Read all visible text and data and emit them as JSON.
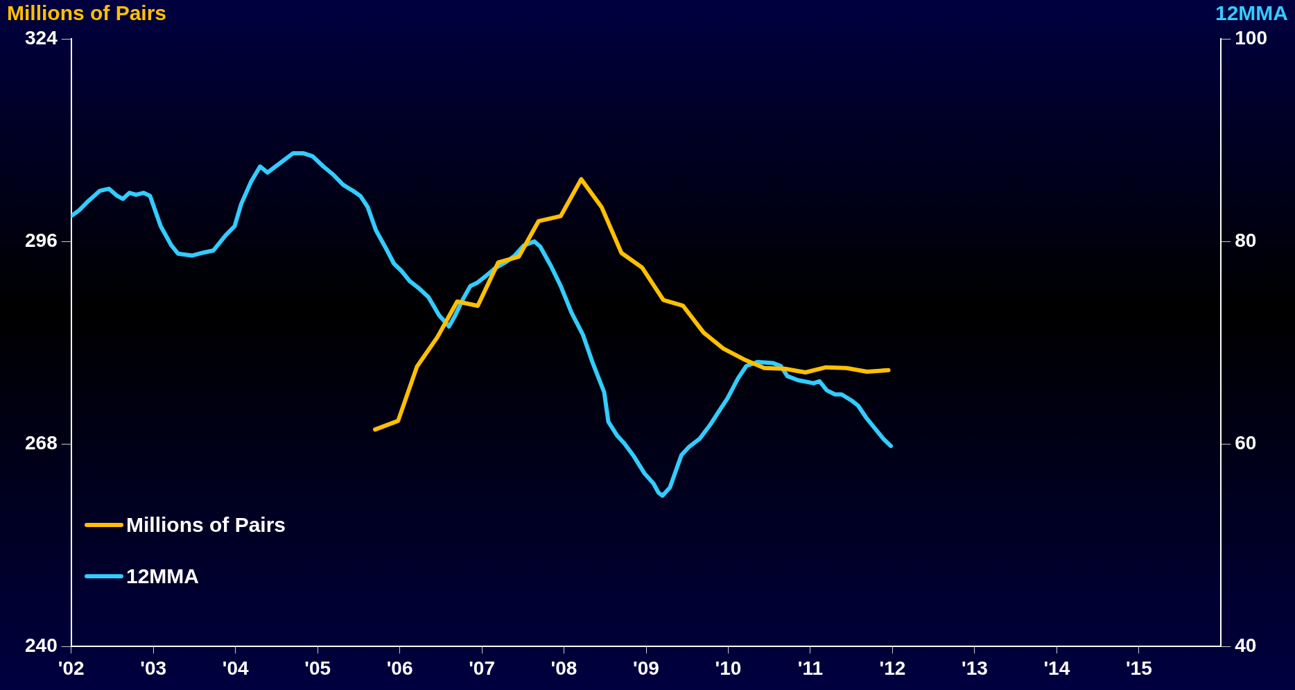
{
  "chart_data": {
    "type": "line",
    "ylabel": "Millions of Pairs",
    "y2label": "12MMA",
    "xlim": [
      2002,
      2016
    ],
    "xticks": [
      {
        "value": 2002,
        "label": "'02"
      },
      {
        "value": 2003,
        "label": "'03"
      },
      {
        "value": 2004,
        "label": "'04"
      },
      {
        "value": 2005,
        "label": "'05"
      },
      {
        "value": 2006,
        "label": "'06"
      },
      {
        "value": 2007,
        "label": "'07"
      },
      {
        "value": 2008,
        "label": "'08"
      },
      {
        "value": 2009,
        "label": "'09"
      },
      {
        "value": 2010,
        "label": "'10"
      },
      {
        "value": 2011,
        "label": "'11"
      },
      {
        "value": 2012,
        "label": "'12"
      },
      {
        "value": 2013,
        "label": "'13"
      },
      {
        "value": 2014,
        "label": "'14"
      },
      {
        "value": 2015,
        "label": "'15"
      }
    ],
    "ylim": [
      240,
      324
    ],
    "yticks": [
      240,
      268,
      296,
      324
    ],
    "y2lim": [
      40,
      100
    ],
    "y2ticks": [
      40,
      60,
      80,
      100
    ],
    "grid": false,
    "legend": "bottom left",
    "marker": "none",
    "line_style": "solid",
    "series": [
      {
        "name": "Millions of Pairs",
        "color": "#ffc000",
        "x": [
          2005.7,
          2005.98,
          2006.21,
          2006.46,
          2006.7,
          2006.95,
          2007.2,
          2007.45,
          2007.69,
          2007.96,
          2008.21,
          2008.46,
          2008.7,
          2008.95,
          2009.21,
          2009.45,
          2009.7,
          2009.94,
          2010.19,
          2010.44,
          2010.69,
          2010.94,
          2011.19,
          2011.44,
          2011.69,
          2011.95
        ],
        "values": [
          270.0,
          271.2,
          278.7,
          282.8,
          287.7,
          287.1,
          293.1,
          293.9,
          298.8,
          299.5,
          304.6,
          300.7,
          294.4,
          292.4,
          287.9,
          287.1,
          283.4,
          281.2,
          279.7,
          278.5,
          278.4,
          277.9,
          278.6,
          278.5,
          278.0,
          278.2
        ]
      },
      {
        "name": "12MMA",
        "color": "#33ccff",
        "axis": "y2",
        "x": [
          2002.0,
          2002.1,
          2002.21,
          2002.35,
          2002.46,
          2002.56,
          2002.63,
          2002.71,
          2002.79,
          2002.88,
          2002.96,
          2003.09,
          2003.22,
          2003.3,
          2003.47,
          2003.61,
          2003.73,
          2003.88,
          2003.99,
          2004.07,
          2004.19,
          2004.3,
          2004.39,
          2004.57,
          2004.7,
          2004.83,
          2004.94,
          2005.07,
          2005.19,
          2005.31,
          2005.43,
          2005.52,
          2005.61,
          2005.71,
          2005.82,
          2005.93,
          2006.02,
          2006.12,
          2006.23,
          2006.35,
          2006.48,
          2006.6,
          2006.67,
          2006.77,
          2006.86,
          2006.94,
          2007.05,
          2007.17,
          2007.3,
          2007.4,
          2007.51,
          2007.64,
          2007.71,
          2007.84,
          2007.96,
          2008.09,
          2008.23,
          2008.35,
          2008.49,
          2008.54,
          2008.65,
          2008.73,
          2008.85,
          2008.98,
          2009.09,
          2009.15,
          2009.2,
          2009.29,
          2009.43,
          2009.52,
          2009.65,
          2009.78,
          2009.9,
          2009.99,
          2010.12,
          2010.22,
          2010.36,
          2010.54,
          2010.64,
          2010.72,
          2010.85,
          2011.04,
          2011.11,
          2011.2,
          2011.3,
          2011.38,
          2011.5,
          2011.58,
          2011.68,
          2011.79,
          2011.89,
          2011.98
        ],
        "values": [
          82.5,
          83.1,
          84.0,
          85.0,
          85.2,
          84.5,
          84.2,
          84.8,
          84.6,
          84.8,
          84.5,
          81.5,
          79.6,
          78.8,
          78.6,
          78.9,
          79.1,
          80.6,
          81.5,
          83.7,
          85.9,
          87.4,
          86.8,
          87.9,
          88.7,
          88.7,
          88.4,
          87.4,
          86.6,
          85.6,
          85.0,
          84.5,
          83.4,
          81.1,
          79.5,
          77.8,
          77.1,
          76.1,
          75.4,
          74.5,
          72.7,
          71.6,
          72.6,
          74.3,
          75.6,
          75.9,
          76.6,
          77.4,
          78.0,
          78.6,
          79.6,
          80.0,
          79.5,
          77.6,
          75.6,
          73.0,
          70.8,
          68.0,
          65.1,
          62.2,
          60.8,
          60.1,
          58.8,
          57.1,
          56.1,
          55.2,
          54.9,
          55.7,
          58.9,
          59.7,
          60.5,
          61.9,
          63.4,
          64.5,
          66.5,
          67.7,
          68.1,
          68.0,
          67.7,
          66.7,
          66.3,
          66.0,
          66.2,
          65.3,
          64.9,
          64.9,
          64.3,
          63.8,
          62.6,
          61.5,
          60.5,
          59.8
        ]
      }
    ]
  }
}
